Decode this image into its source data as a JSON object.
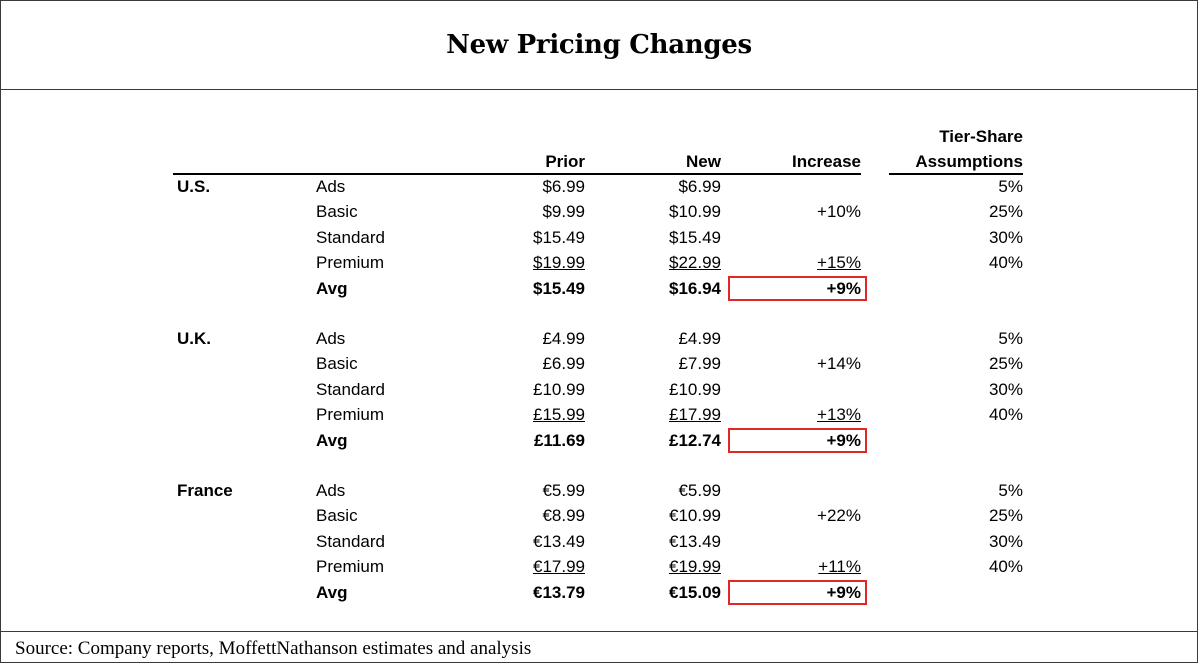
{
  "title": "New Pricing Changes",
  "headers": {
    "prior": "Prior",
    "new": "New",
    "increase": "Increase",
    "tier_share_1": "Tier-Share",
    "tier_share_2": "Assumptions"
  },
  "regions": [
    {
      "name": "U.S.",
      "rows": [
        {
          "tier": "Ads",
          "prior": "$6.99",
          "new": "$6.99",
          "increase": "",
          "share": "5%"
        },
        {
          "tier": "Basic",
          "prior": "$9.99",
          "new": "$10.99",
          "increase": "+10%",
          "share": "25%"
        },
        {
          "tier": "Standard",
          "prior": "$15.49",
          "new": "$15.49",
          "increase": "",
          "share": "30%"
        },
        {
          "tier": "Premium",
          "prior": "$19.99",
          "new": "$22.99",
          "increase": "+15%",
          "share": "40%"
        },
        {
          "tier": "Avg",
          "prior": "$15.49",
          "new": "$16.94",
          "increase": "+9%",
          "share": ""
        }
      ]
    },
    {
      "name": "U.K.",
      "rows": [
        {
          "tier": "Ads",
          "prior": "£4.99",
          "new": "£4.99",
          "increase": "",
          "share": "5%"
        },
        {
          "tier": "Basic",
          "prior": "£6.99",
          "new": "£7.99",
          "increase": "+14%",
          "share": "25%"
        },
        {
          "tier": "Standard",
          "prior": "£10.99",
          "new": "£10.99",
          "increase": "",
          "share": "30%"
        },
        {
          "tier": "Premium",
          "prior": "£15.99",
          "new": "£17.99",
          "increase": "+13%",
          "share": "40%"
        },
        {
          "tier": "Avg",
          "prior": "£11.69",
          "new": "£12.74",
          "increase": "+9%",
          "share": ""
        }
      ]
    },
    {
      "name": "France",
      "rows": [
        {
          "tier": "Ads",
          "prior": "€5.99",
          "new": "€5.99",
          "increase": "",
          "share": "5%"
        },
        {
          "tier": "Basic",
          "prior": "€8.99",
          "new": "€10.99",
          "increase": "+22%",
          "share": "25%"
        },
        {
          "tier": "Standard",
          "prior": "€13.49",
          "new": "€13.49",
          "increase": "",
          "share": "30%"
        },
        {
          "tier": "Premium",
          "prior": "€17.99",
          "new": "€19.99",
          "increase": "+11%",
          "share": "40%"
        },
        {
          "tier": "Avg",
          "prior": "€13.79",
          "new": "€15.09",
          "increase": "+9%",
          "share": ""
        }
      ]
    }
  ],
  "source": "Source: Company reports, MoffettNathanson estimates and analysis",
  "colors": {
    "highlight_border": "#e32626",
    "rule": "#000000"
  }
}
